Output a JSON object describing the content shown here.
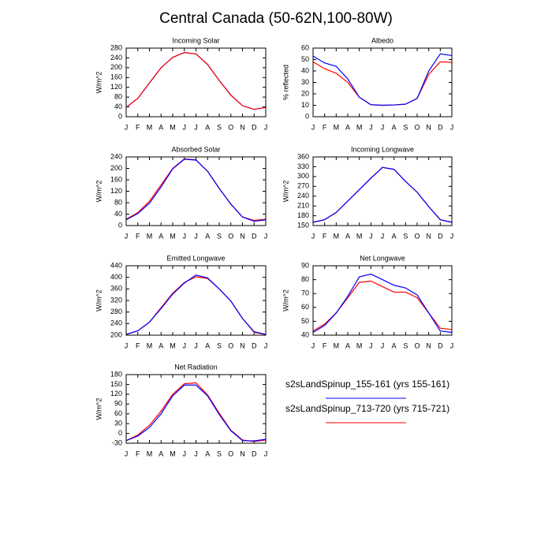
{
  "title": "Central Canada (50-62N,100-80W)",
  "chart_data": [
    {
      "type": "line",
      "title": "Incoming Solar",
      "ylabel": "W/m^2",
      "categories": [
        "J",
        "F",
        "M",
        "A",
        "M",
        "J",
        "J",
        "A",
        "S",
        "O",
        "N",
        "D",
        "J"
      ],
      "ylim": [
        0,
        280
      ],
      "yticks": [
        0,
        40,
        80,
        120,
        160,
        200,
        240,
        280
      ],
      "series": [
        {
          "name": "s2sLandSpinup_155-161 (yrs 155-161)",
          "color": "#0000ff",
          "values": [
            38,
            75,
            138,
            200,
            242,
            262,
            256,
            213,
            148,
            88,
            45,
            30,
            38
          ]
        },
        {
          "name": "s2sLandSpinup_713-720 (yrs 715-721)",
          "color": "#ff0000",
          "values": [
            38,
            75,
            138,
            200,
            242,
            262,
            256,
            213,
            148,
            88,
            45,
            30,
            38
          ]
        }
      ]
    },
    {
      "type": "line",
      "title": "Albedo",
      "ylabel": "% reflected",
      "categories": [
        "J",
        "F",
        "M",
        "A",
        "M",
        "J",
        "J",
        "A",
        "S",
        "O",
        "N",
        "D",
        "J"
      ],
      "ylim": [
        0,
        60
      ],
      "yticks": [
        0,
        10,
        20,
        30,
        40,
        50,
        60
      ],
      "series": [
        {
          "color": "#ff0000",
          "values": [
            48,
            42,
            38,
            30,
            17,
            10.5,
            10,
            10.3,
            11,
            16,
            37,
            48,
            47.5
          ]
        },
        {
          "color": "#0000ff",
          "values": [
            53,
            47,
            44,
            33,
            17,
            10.5,
            10,
            10.3,
            11,
            16,
            40,
            55,
            53.5
          ]
        }
      ]
    },
    {
      "type": "line",
      "title": "Absorbed Solar",
      "ylabel": "W/m^2",
      "categories": [
        "J",
        "F",
        "M",
        "A",
        "M",
        "J",
        "J",
        "A",
        "S",
        "O",
        "N",
        "D",
        "J"
      ],
      "ylim": [
        0,
        240
      ],
      "yticks": [
        0,
        40,
        80,
        120,
        160,
        200,
        240
      ],
      "series": [
        {
          "color": "#ff0000",
          "values": [
            22,
            45,
            85,
            142,
            200,
            233,
            230,
            190,
            130,
            75,
            30,
            18,
            22
          ]
        },
        {
          "color": "#0000ff",
          "values": [
            20,
            42,
            78,
            135,
            198,
            232,
            229,
            190,
            130,
            75,
            30,
            15,
            20
          ]
        }
      ]
    },
    {
      "type": "line",
      "title": "Incoming Longwave",
      "ylabel": "W/m^2",
      "categories": [
        "J",
        "F",
        "M",
        "A",
        "M",
        "J",
        "J",
        "A",
        "S",
        "O",
        "N",
        "D",
        "J"
      ],
      "ylim": [
        150,
        360
      ],
      "yticks": [
        150,
        180,
        210,
        240,
        270,
        300,
        330,
        360
      ],
      "series": [
        {
          "color": "#ff0000",
          "values": [
            160,
            168,
            190,
            225,
            260,
            295,
            328,
            322,
            285,
            252,
            208,
            168,
            160
          ]
        },
        {
          "color": "#0000ff",
          "values": [
            160,
            168,
            190,
            225,
            260,
            295,
            328,
            322,
            285,
            252,
            208,
            168,
            160
          ]
        }
      ]
    },
    {
      "type": "line",
      "title": "Emitted Longwave",
      "ylabel": "W/m^2",
      "categories": [
        "J",
        "F",
        "M",
        "A",
        "M",
        "J",
        "J",
        "A",
        "S",
        "O",
        "N",
        "D",
        "J"
      ],
      "ylim": [
        200,
        440
      ],
      "yticks": [
        200,
        240,
        280,
        320,
        360,
        400,
        440
      ],
      "series": [
        {
          "color": "#ff0000",
          "values": [
            202,
            215,
            245,
            295,
            345,
            382,
            402,
            396,
            360,
            318,
            258,
            210,
            202
          ]
        },
        {
          "color": "#0000ff",
          "values": [
            203,
            215,
            245,
            292,
            342,
            380,
            408,
            398,
            360,
            318,
            258,
            212,
            203
          ]
        }
      ]
    },
    {
      "type": "line",
      "title": "Net Longwave",
      "ylabel": "W/m^2",
      "categories": [
        "J",
        "F",
        "M",
        "A",
        "M",
        "J",
        "J",
        "A",
        "S",
        "O",
        "N",
        "D",
        "J"
      ],
      "ylim": [
        40,
        90
      ],
      "yticks": [
        40,
        50,
        60,
        70,
        80,
        90
      ],
      "series": [
        {
          "color": "#ff0000",
          "values": [
            43,
            48,
            56,
            67,
            78,
            79,
            75,
            71,
            71,
            67,
            56,
            45,
            44
          ]
        },
        {
          "color": "#0000ff",
          "values": [
            42,
            47,
            56,
            68,
            82,
            84,
            80,
            76,
            74,
            69,
            56,
            43,
            42
          ]
        }
      ]
    },
    {
      "type": "line",
      "title": "Net Radiation",
      "ylabel": "W/m^2",
      "categories": [
        "J",
        "F",
        "M",
        "A",
        "M",
        "J",
        "J",
        "A",
        "S",
        "O",
        "N",
        "D",
        "J"
      ],
      "ylim": [
        -30,
        180
      ],
      "yticks": [
        -30,
        0,
        30,
        60,
        90,
        120,
        150,
        180
      ],
      "series": [
        {
          "color": "#ff0000",
          "values": [
            -22,
            -5,
            25,
            68,
            120,
            152,
            155,
            118,
            62,
            10,
            -20,
            -25,
            -20
          ]
        },
        {
          "color": "#0000ff",
          "values": [
            -22,
            -8,
            18,
            60,
            115,
            148,
            148,
            115,
            58,
            8,
            -22,
            -23,
            -18
          ]
        }
      ]
    }
  ]
}
